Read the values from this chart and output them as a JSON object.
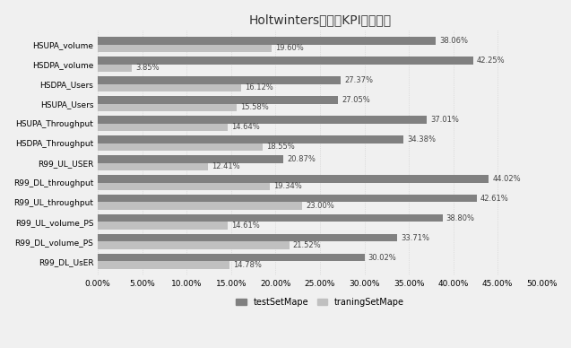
{
  "title": "Holtwinters算法在KPI下误差率",
  "categories": [
    "R99_DL_UsER",
    "R99_DL_volume_PS",
    "R99_UL_volume_PS",
    "R99_UL_throughput",
    "R99_DL_throughput",
    "R99_UL_USER",
    "HSDPA_Throughput",
    "HSUPA_Throughput",
    "HSUPA_Users",
    "HSDPA_Users",
    "HSDPA_volume",
    "HSUPA_volume"
  ],
  "testSetMape": [
    30.02,
    33.71,
    38.8,
    42.61,
    44.02,
    20.87,
    34.38,
    37.01,
    27.05,
    27.37,
    42.25,
    38.06
  ],
  "trainingSetMape": [
    14.78,
    21.52,
    14.61,
    23.0,
    19.34,
    12.41,
    18.55,
    14.64,
    15.58,
    16.12,
    3.85,
    19.6
  ],
  "testSetMape_labels": [
    "30.02%",
    "33.71%",
    "38.80%",
    "42.61%",
    "44.02%",
    "20.87%",
    "34.38%",
    "37.01%",
    "27.05%",
    "27.37%",
    "42.25%",
    "38.06%"
  ],
  "trainingSetMape_labels": [
    "14.78%",
    "21.52%",
    "14.61%",
    "23.00%",
    "19.34%",
    "12.41%",
    "18.55%",
    "14.64%",
    "15.58%",
    "16.12%",
    "3.85%",
    "19.60%"
  ],
  "color_test": "#808080",
  "color_train": "#c0c0c0",
  "xlim": [
    0,
    50
  ],
  "xticks": [
    0,
    5,
    10,
    15,
    20,
    25,
    30,
    35,
    40,
    45,
    50
  ],
  "xtick_labels": [
    "0.00%",
    "5.00%",
    "10.00%",
    "15.00%",
    "20.00%",
    "25.00%",
    "30.00%",
    "35.00%",
    "40.00%",
    "45.00%",
    "50.00%"
  ],
  "legend_labels": [
    "testSetMape",
    "traningSetMape"
  ],
  "background_color": "#f0f0f0",
  "bar_height": 0.38,
  "title_fontsize": 10,
  "label_fontsize": 6,
  "tick_fontsize": 6.5
}
